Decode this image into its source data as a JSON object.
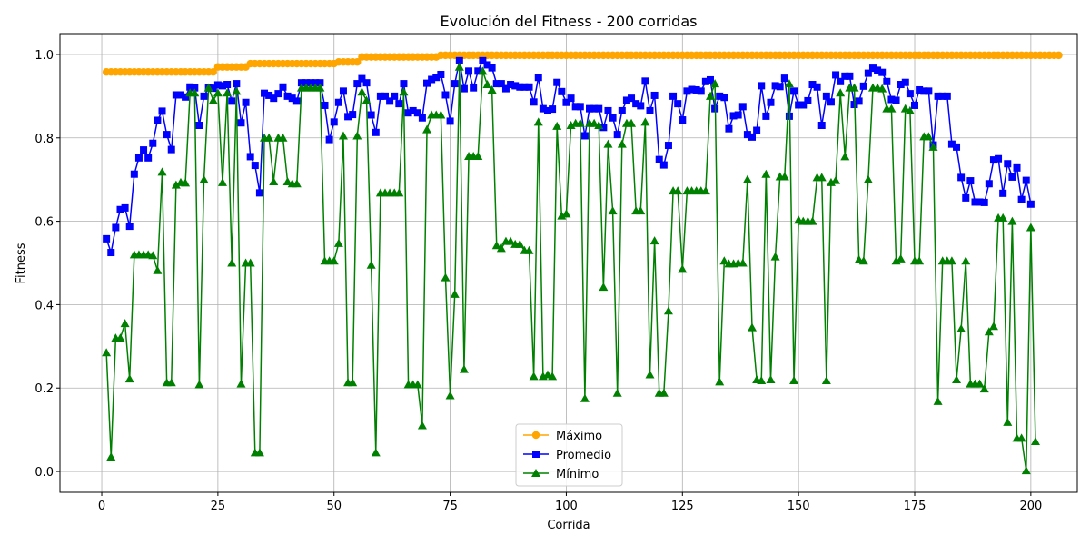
{
  "chart_data": {
    "type": "line",
    "title": "Evolución del Fitness - 200 corridas",
    "xlabel": "Corrida",
    "ylabel": "Fitness",
    "xlim": [
      -9,
      210
    ],
    "ylim": [
      -0.05,
      1.05
    ],
    "xticks": [
      0,
      25,
      50,
      75,
      100,
      125,
      150,
      175,
      200
    ],
    "yticks": [
      0.0,
      0.2,
      0.4,
      0.6,
      0.8,
      1.0
    ],
    "grid": true,
    "legend_position": "lower-center",
    "series": [
      {
        "name": "Máximo",
        "color": "#ffa500",
        "marker": "circle",
        "values": [
          0.958,
          0.958,
          0.958,
          0.958,
          0.958,
          0.958,
          0.958,
          0.958,
          0.958,
          0.958,
          0.958,
          0.958,
          0.958,
          0.958,
          0.958,
          0.958,
          0.958,
          0.958,
          0.958,
          0.958,
          0.958,
          0.958,
          0.958,
          0.958,
          0.97,
          0.97,
          0.97,
          0.97,
          0.97,
          0.97,
          0.97,
          0.978,
          0.978,
          0.978,
          0.978,
          0.978,
          0.978,
          0.978,
          0.978,
          0.978,
          0.978,
          0.978,
          0.978,
          0.978,
          0.978,
          0.978,
          0.978,
          0.978,
          0.978,
          0.978,
          0.982,
          0.982,
          0.982,
          0.982,
          0.982,
          0.994,
          0.994,
          0.994,
          0.994,
          0.994,
          0.994,
          0.994,
          0.994,
          0.994,
          0.994,
          0.994,
          0.994,
          0.994,
          0.994,
          0.994,
          0.994,
          0.994,
          0.998,
          0.998,
          0.998,
          0.998,
          0.998,
          0.998,
          0.998,
          0.998,
          0.998,
          0.998,
          0.998,
          0.998,
          0.998,
          0.998,
          0.998,
          0.998,
          0.998,
          0.998,
          0.998,
          0.998,
          0.998,
          0.998,
          0.998,
          0.998,
          0.998,
          0.998,
          0.998,
          0.998,
          0.998,
          0.998,
          0.998,
          0.998,
          0.998,
          0.998,
          0.998,
          0.998,
          0.998,
          0.998,
          0.998,
          0.998,
          0.998,
          0.998,
          0.998,
          0.998,
          0.998,
          0.998,
          0.998,
          0.998,
          0.998,
          0.998,
          0.998,
          0.998,
          0.998,
          0.998,
          0.998,
          0.998,
          0.998,
          0.998,
          0.998,
          0.998,
          0.998,
          0.998,
          0.998,
          0.998,
          0.998,
          0.998,
          0.998,
          0.998,
          0.998,
          0.998,
          0.998,
          0.998,
          0.998,
          0.998,
          0.998,
          0.998,
          0.998,
          0.998,
          0.998,
          0.998,
          0.998,
          0.998,
          0.998,
          0.998,
          0.998,
          0.998,
          0.998,
          0.998,
          0.998,
          0.998,
          0.998,
          0.998,
          0.998,
          0.998,
          0.998,
          0.998,
          0.998,
          0.998,
          0.998,
          0.998,
          0.998,
          0.998,
          0.998,
          0.998,
          0.998,
          0.998,
          0.998,
          0.998,
          0.998,
          0.998,
          0.998,
          0.998,
          0.998,
          0.998,
          0.998,
          0.998,
          0.998,
          0.998,
          0.998,
          0.998,
          0.998,
          0.998,
          0.998,
          0.998,
          0.998,
          0.998,
          0.998,
          0.998,
          0.998,
          0.998,
          0.998,
          0.998,
          0.998,
          0.998
        ]
      },
      {
        "name": "Promedio",
        "color": "#0000ff",
        "marker": "square",
        "values": [
          0.558,
          0.525,
          0.585,
          0.628,
          0.632,
          0.588,
          0.713,
          0.752,
          0.771,
          0.752,
          0.787,
          0.842,
          0.864,
          0.808,
          0.772,
          0.903,
          0.903,
          0.898,
          0.922,
          0.92,
          0.83,
          0.9,
          0.92,
          0.919,
          0.927,
          0.925,
          0.928,
          0.888,
          0.93,
          0.836,
          0.885,
          0.755,
          0.734,
          0.668,
          0.907,
          0.902,
          0.895,
          0.906,
          0.922,
          0.9,
          0.895,
          0.888,
          0.932,
          0.932,
          0.932,
          0.932,
          0.932,
          0.878,
          0.796,
          0.838,
          0.885,
          0.912,
          0.851,
          0.856,
          0.93,
          0.942,
          0.932,
          0.855,
          0.813,
          0.9,
          0.9,
          0.888,
          0.9,
          0.882,
          0.93,
          0.86,
          0.865,
          0.86,
          0.848,
          0.931,
          0.94,
          0.945,
          0.952,
          0.903,
          0.84,
          0.93,
          0.985,
          0.918,
          0.96,
          0.92,
          0.96,
          0.985,
          0.975,
          0.968,
          0.93,
          0.93,
          0.918,
          0.928,
          0.925,
          0.922,
          0.922,
          0.922,
          0.886,
          0.945,
          0.87,
          0.865,
          0.869,
          0.933,
          0.911,
          0.885,
          0.895,
          0.875,
          0.875,
          0.805,
          0.87,
          0.87,
          0.87,
          0.825,
          0.865,
          0.848,
          0.808,
          0.865,
          0.89,
          0.895,
          0.882,
          0.877,
          0.936,
          0.865,
          0.902,
          0.748,
          0.735,
          0.782,
          0.9,
          0.882,
          0.843,
          0.912,
          0.916,
          0.915,
          0.912,
          0.935,
          0.939,
          0.87,
          0.9,
          0.897,
          0.822,
          0.853,
          0.855,
          0.875,
          0.808,
          0.802,
          0.818,
          0.925,
          0.852,
          0.885,
          0.925,
          0.923,
          0.943,
          0.852,
          0.912,
          0.879,
          0.879,
          0.889,
          0.928,
          0.922,
          0.83,
          0.9,
          0.886,
          0.951,
          0.935,
          0.948,
          0.948,
          0.88,
          0.888,
          0.924,
          0.955,
          0.967,
          0.962,
          0.957,
          0.935,
          0.892,
          0.89,
          0.928,
          0.933,
          0.906,
          0.878,
          0.915,
          0.912,
          0.912,
          0.783,
          0.9,
          0.9,
          0.9,
          0.785,
          0.778,
          0.705,
          0.656,
          0.697,
          0.646,
          0.646,
          0.645,
          0.69,
          0.747,
          0.75,
          0.667,
          0.738,
          0.706,
          0.728,
          0.652,
          0.698,
          0.641
        ]
      },
      {
        "name": "Mínimo",
        "color": "#008000",
        "marker": "triangle",
        "values": [
          0.285,
          0.035,
          0.32,
          0.32,
          0.355,
          0.222,
          0.52,
          0.52,
          0.52,
          0.52,
          0.518,
          0.482,
          0.718,
          0.213,
          0.213,
          0.687,
          0.693,
          0.692,
          0.908,
          0.908,
          0.208,
          0.7,
          0.92,
          0.89,
          0.908,
          0.693,
          0.908,
          0.5,
          0.912,
          0.21,
          0.5,
          0.5,
          0.045,
          0.045,
          0.8,
          0.8,
          0.695,
          0.8,
          0.8,
          0.695,
          0.69,
          0.69,
          0.92,
          0.92,
          0.92,
          0.92,
          0.92,
          0.505,
          0.505,
          0.505,
          0.547,
          0.805,
          0.213,
          0.213,
          0.805,
          0.91,
          0.89,
          0.495,
          0.045,
          0.668,
          0.668,
          0.668,
          0.668,
          0.668,
          0.91,
          0.208,
          0.208,
          0.208,
          0.11,
          0.82,
          0.855,
          0.855,
          0.855,
          0.465,
          0.182,
          0.425,
          0.97,
          0.245,
          0.756,
          0.756,
          0.756,
          0.96,
          0.928,
          0.915,
          0.542,
          0.535,
          0.552,
          0.552,
          0.545,
          0.545,
          0.53,
          0.53,
          0.228,
          0.838,
          0.228,
          0.232,
          0.228,
          0.828,
          0.613,
          0.618,
          0.83,
          0.835,
          0.835,
          0.175,
          0.835,
          0.835,
          0.83,
          0.442,
          0.785,
          0.625,
          0.188,
          0.785,
          0.835,
          0.835,
          0.625,
          0.625,
          0.838,
          0.232,
          0.553,
          0.188,
          0.188,
          0.385,
          0.673,
          0.673,
          0.485,
          0.673,
          0.673,
          0.673,
          0.673,
          0.673,
          0.9,
          0.93,
          0.215,
          0.505,
          0.498,
          0.498,
          0.5,
          0.5,
          0.7,
          0.345,
          0.22,
          0.218,
          0.713,
          0.22,
          0.515,
          0.707,
          0.707,
          0.93,
          0.218,
          0.603,
          0.6,
          0.6,
          0.6,
          0.705,
          0.705,
          0.218,
          0.693,
          0.698,
          0.908,
          0.755,
          0.92,
          0.92,
          0.508,
          0.505,
          0.7,
          0.92,
          0.92,
          0.918,
          0.87,
          0.87,
          0.505,
          0.51,
          0.87,
          0.865,
          0.505,
          0.505,
          0.803,
          0.803,
          0.778,
          0.168,
          0.505,
          0.505,
          0.505,
          0.22,
          0.342,
          0.505,
          0.21,
          0.21,
          0.21,
          0.198,
          0.335,
          0.348,
          0.608,
          0.608,
          0.118,
          0.6,
          0.08,
          0.08,
          0.002,
          0.585,
          0.072
        ]
      }
    ]
  }
}
